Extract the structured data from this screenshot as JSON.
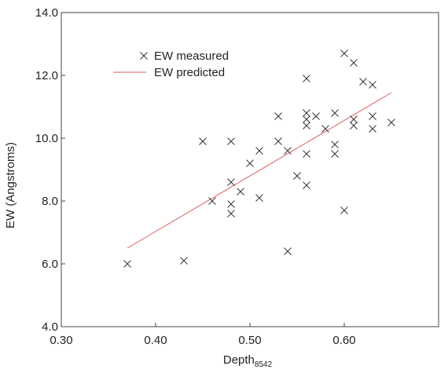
{
  "chart_data": {
    "type": "scatter",
    "title": "",
    "xlabel_main": "Depth",
    "xlabel_sub": "8542",
    "ylabel": "EW (Angstroms)",
    "xlim": [
      0.3,
      0.7
    ],
    "ylim": [
      4.0,
      14.0
    ],
    "x_ticks": [
      0.3,
      0.4,
      0.5,
      0.6
    ],
    "x_tick_labels": [
      "0.30",
      "0.40",
      "0.50",
      "0.60"
    ],
    "y_ticks": [
      4.0,
      6.0,
      8.0,
      10.0,
      12.0,
      14.0
    ],
    "y_tick_labels": [
      "4.0",
      "6.0",
      "8.0",
      "10.0",
      "12.0",
      "14.0"
    ],
    "grid": false,
    "legend_position": "top-left",
    "colors": {
      "measured": "#333333",
      "predicted": "#e05a5a",
      "axis": "#444444"
    },
    "series": [
      {
        "name": "EW measured",
        "kind": "scatter",
        "marker": "x",
        "points": [
          [
            0.37,
            6.0
          ],
          [
            0.43,
            6.1
          ],
          [
            0.45,
            9.9
          ],
          [
            0.46,
            8.0
          ],
          [
            0.48,
            9.9
          ],
          [
            0.48,
            8.6
          ],
          [
            0.48,
            7.9
          ],
          [
            0.48,
            7.6
          ],
          [
            0.49,
            8.3
          ],
          [
            0.5,
            9.2
          ],
          [
            0.51,
            9.6
          ],
          [
            0.51,
            8.1
          ],
          [
            0.53,
            10.7
          ],
          [
            0.53,
            9.9
          ],
          [
            0.54,
            9.6
          ],
          [
            0.54,
            6.4
          ],
          [
            0.55,
            8.8
          ],
          [
            0.56,
            11.9
          ],
          [
            0.56,
            10.8
          ],
          [
            0.56,
            10.6
          ],
          [
            0.56,
            10.4
          ],
          [
            0.56,
            9.5
          ],
          [
            0.56,
            8.5
          ],
          [
            0.57,
            10.7
          ],
          [
            0.58,
            10.3
          ],
          [
            0.59,
            10.8
          ],
          [
            0.59,
            9.8
          ],
          [
            0.59,
            9.5
          ],
          [
            0.6,
            12.7
          ],
          [
            0.6,
            7.7
          ],
          [
            0.61,
            12.4
          ],
          [
            0.61,
            10.6
          ],
          [
            0.61,
            10.4
          ],
          [
            0.62,
            11.8
          ],
          [
            0.63,
            11.7
          ],
          [
            0.63,
            10.7
          ],
          [
            0.63,
            10.3
          ],
          [
            0.65,
            10.5
          ]
        ]
      },
      {
        "name": "EW predicted",
        "kind": "line",
        "points": [
          [
            0.37,
            6.5
          ],
          [
            0.65,
            11.45
          ]
        ]
      }
    ]
  }
}
